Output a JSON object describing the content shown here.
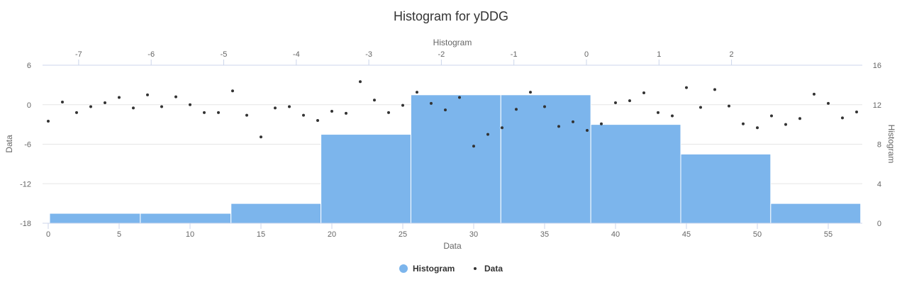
{
  "chart_data": {
    "type": "histogram",
    "title": "Histogram for yDDG",
    "x_axis": {
      "label": "Data",
      "min": 0,
      "max": 57,
      "ticks": [
        0,
        5,
        10,
        15,
        20,
        25,
        30,
        35,
        40,
        45,
        50,
        55
      ]
    },
    "y_axis": {
      "label": "Data",
      "min": -18,
      "max": 6,
      "ticks": [
        -18,
        -12,
        -6,
        0,
        6
      ]
    },
    "x2_axis": {
      "label": "Histogram",
      "ticks": [
        -7,
        -6,
        -5,
        -4,
        -3,
        -2,
        -1,
        0,
        1,
        2
      ]
    },
    "y2_axis": {
      "label": "Histogram",
      "min": 0,
      "max": 16,
      "ticks": [
        0,
        4,
        8,
        12,
        16
      ]
    },
    "grid": true,
    "legend_position": "bottom-center",
    "colors": {
      "histogram": "#7cb5ec",
      "scatter": "#333333"
    },
    "histogram": {
      "name": "Histogram",
      "bins": [
        {
          "x0": -7.4,
          "x1": -6.15,
          "count": 1
        },
        {
          "x0": -6.15,
          "x1": -4.9,
          "count": 1
        },
        {
          "x0": -4.9,
          "x1": -3.66,
          "count": 2
        },
        {
          "x0": -3.66,
          "x1": -2.42,
          "count": 9
        },
        {
          "x0": -2.42,
          "x1": -1.18,
          "count": 13
        },
        {
          "x0": -1.18,
          "x1": 0.06,
          "count": 13
        },
        {
          "x0": 0.06,
          "x1": 1.3,
          "count": 10
        },
        {
          "x0": 1.3,
          "x1": 2.54,
          "count": 7
        },
        {
          "x0": 2.54,
          "x1": 3.78,
          "count": 2
        }
      ]
    },
    "scatter": {
      "name": "Data",
      "y": [
        -2.5,
        0.4,
        -1.2,
        -0.3,
        0.3,
        1.1,
        -0.5,
        1.5,
        -0.3,
        1.2,
        0.0,
        -1.2,
        -1.2,
        2.1,
        -1.6,
        -4.9,
        -0.5,
        -0.3,
        -1.6,
        -2.4,
        -1.0,
        -1.3,
        3.5,
        0.7,
        -1.2,
        -0.1,
        1.9,
        0.2,
        -0.8,
        1.1,
        -6.3,
        -4.5,
        -3.5,
        -0.7,
        1.9,
        -0.3,
        -3.3,
        -2.6,
        -3.9,
        -2.9,
        0.3,
        0.6,
        1.8,
        -1.2,
        -1.7,
        2.6,
        -0.4,
        2.3,
        -0.2,
        -2.9,
        -3.5,
        -1.7,
        -3.0,
        -2.1,
        1.6,
        0.2,
        -2.0,
        -1.1
      ]
    }
  }
}
